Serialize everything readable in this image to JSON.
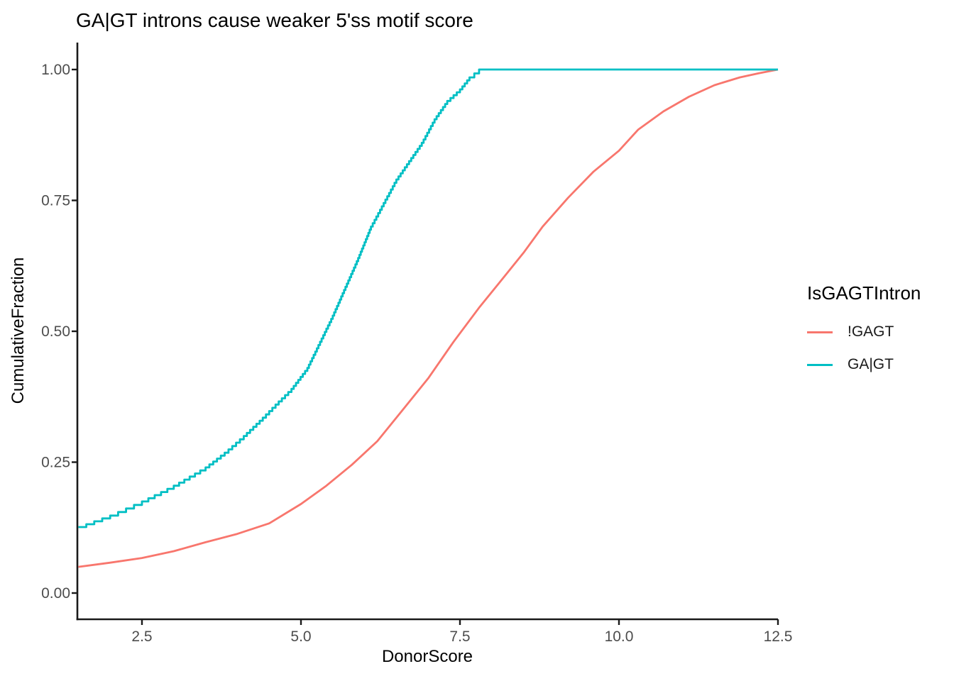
{
  "colors": {
    "background": "#FFFFFF",
    "axis": "#1A1A1A",
    "tick_label": "#4D4D4D",
    "text": "#000000",
    "series_red": "#F8766D",
    "series_teal": "#00BFC4"
  },
  "chart_data": {
    "type": "line",
    "subtype": "ecdf",
    "title": "GA|GT introns cause weaker 5'ss motif score",
    "xlabel": "DonorScore",
    "ylabel": "CumulativeFraction",
    "grid": false,
    "xlim": [
      1.48,
      12.6
    ],
    "ylim": [
      -0.05,
      1.05
    ],
    "x_ticks": {
      "values": [
        2.5,
        5.0,
        7.5,
        10.0,
        12.5
      ],
      "labels": [
        "2.5",
        "5.0",
        "7.5",
        "10.0",
        "12.5"
      ]
    },
    "y_ticks": {
      "values": [
        0.0,
        0.25,
        0.5,
        0.75,
        1.0
      ],
      "labels": [
        "0.00",
        "0.25",
        "0.50",
        "0.75",
        "1.00"
      ]
    },
    "legend": {
      "title": "IsGAGTIntron",
      "position": "right",
      "entries": [
        {
          "label": "!GAGT",
          "color": "#F8766D"
        },
        {
          "label": "GA|GT",
          "color": "#00BFC4"
        }
      ]
    },
    "series": [
      {
        "name": "!GAGT",
        "color": "#F8766D",
        "render": "linear",
        "points": [
          [
            1.5,
            0.05
          ],
          [
            2.0,
            0.058
          ],
          [
            2.5,
            0.067
          ],
          [
            3.0,
            0.08
          ],
          [
            3.5,
            0.097
          ],
          [
            4.0,
            0.113
          ],
          [
            4.5,
            0.133
          ],
          [
            5.0,
            0.17
          ],
          [
            5.4,
            0.205
          ],
          [
            5.8,
            0.245
          ],
          [
            6.2,
            0.29
          ],
          [
            6.6,
            0.35
          ],
          [
            7.0,
            0.41
          ],
          [
            7.4,
            0.48
          ],
          [
            7.8,
            0.545
          ],
          [
            8.1,
            0.59
          ],
          [
            8.5,
            0.65
          ],
          [
            8.8,
            0.7
          ],
          [
            9.2,
            0.755
          ],
          [
            9.6,
            0.805
          ],
          [
            10.0,
            0.845
          ],
          [
            10.3,
            0.885
          ],
          [
            10.7,
            0.92
          ],
          [
            11.1,
            0.948
          ],
          [
            11.5,
            0.97
          ],
          [
            11.9,
            0.985
          ],
          [
            12.2,
            0.993
          ],
          [
            12.5,
            1.0
          ]
        ]
      },
      {
        "name": "GA|GT",
        "color": "#00BFC4",
        "render": "step",
        "points": [
          [
            1.5,
            0.126
          ],
          [
            2.0,
            0.148
          ],
          [
            2.5,
            0.175
          ],
          [
            3.0,
            0.205
          ],
          [
            3.5,
            0.24
          ],
          [
            3.8,
            0.268
          ],
          [
            4.1,
            0.3
          ],
          [
            4.4,
            0.335
          ],
          [
            4.6,
            0.36
          ],
          [
            4.85,
            0.39
          ],
          [
            5.1,
            0.43
          ],
          [
            5.3,
            0.48
          ],
          [
            5.5,
            0.53
          ],
          [
            5.7,
            0.585
          ],
          [
            5.9,
            0.64
          ],
          [
            6.1,
            0.7
          ],
          [
            6.3,
            0.745
          ],
          [
            6.5,
            0.79
          ],
          [
            6.7,
            0.825
          ],
          [
            6.9,
            0.86
          ],
          [
            7.1,
            0.905
          ],
          [
            7.3,
            0.94
          ],
          [
            7.5,
            0.962
          ],
          [
            7.65,
            0.985
          ],
          [
            7.8,
            1.0
          ],
          [
            12.5,
            1.0
          ]
        ]
      }
    ]
  }
}
